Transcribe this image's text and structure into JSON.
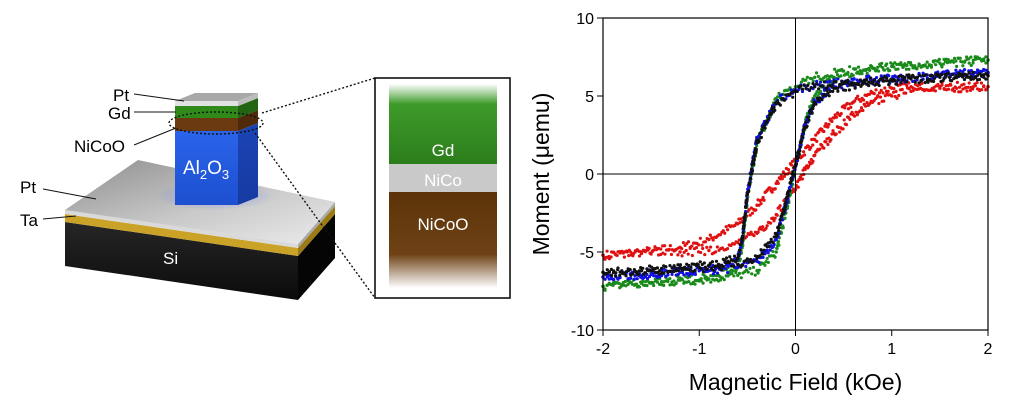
{
  "device": {
    "labels": {
      "pt_top": "Pt",
      "gd": "Gd",
      "nicoo": "NiCoO",
      "al2o3_main": "Al",
      "al2o3_sub": "2",
      "al2o3_o": "O",
      "al2o3_sub2": "3",
      "pt_base": "Pt",
      "ta": "Ta",
      "si": "Si"
    },
    "colors": {
      "pt": "#c8c8c8",
      "gd": "#2f8a1a",
      "nicoo": "#6b3a10",
      "al2o3": "#2a5fe0",
      "ta": "#c9a227",
      "si": "#151515"
    }
  },
  "inset": {
    "labels": {
      "gd": "Gd",
      "nico": "NiCo",
      "nicoo": "NiCoO"
    }
  },
  "chart_data": {
    "type": "scatter",
    "xlabel": "Magnetic Field (kOe)",
    "ylabel": "Moment (μemu)",
    "xlim": [
      -2,
      2
    ],
    "ylim": [
      -10,
      10
    ],
    "xticks": [
      "-2",
      "-1",
      "0",
      "1",
      "2"
    ],
    "yticks": [
      "10",
      "5",
      "0",
      "-5",
      "-10"
    ],
    "grid": false,
    "zero_lines": true,
    "series": [
      {
        "color": "#e01010",
        "branches": [
          {
            "x": [
              -2.0,
              -1.6,
              -1.2,
              -0.9,
              -0.6,
              -0.4,
              -0.2,
              0.0,
              0.2,
              0.4,
              0.6,
              0.8,
              1.0,
              1.2,
              1.5,
              2.0
            ],
            "y": [
              -5.2,
              -5.0,
              -4.7,
              -4.2,
              -3.2,
              -2.0,
              -0.6,
              0.8,
              2.2,
              3.6,
              4.6,
              5.2,
              5.5,
              5.6,
              5.6,
              5.6
            ]
          },
          {
            "x": [
              2.0,
              1.5,
              1.2,
              1.0,
              0.8,
              0.6,
              0.4,
              0.2,
              0.1,
              0.0,
              -0.2,
              -0.4,
              -0.6,
              -0.9,
              -1.2,
              -1.6,
              -2.0
            ],
            "y": [
              5.6,
              5.5,
              5.3,
              5.0,
              4.6,
              3.8,
              2.6,
              1.2,
              0.3,
              -1.0,
              -2.6,
              -3.8,
              -4.4,
              -4.9,
              -5.0,
              -5.1,
              -5.2
            ]
          }
        ]
      },
      {
        "color": "#1a8a1a",
        "branches": [
          {
            "x": [
              -2.0,
              -1.5,
              -1.0,
              -0.6,
              -0.4,
              -0.2,
              -0.1,
              0.0,
              0.1,
              0.2,
              0.4,
              0.8,
              1.2,
              1.6,
              2.0
            ],
            "y": [
              -7.2,
              -7.0,
              -6.8,
              -6.5,
              -6.2,
              -5.0,
              -2.5,
              0.5,
              3.2,
              5.0,
              6.2,
              6.8,
              7.0,
              7.2,
              7.3
            ]
          },
          {
            "x": [
              2.0,
              1.5,
              1.0,
              0.5,
              0.2,
              0.0,
              -0.2,
              -0.4,
              -0.5,
              -0.55,
              -0.6,
              -0.8,
              -1.2,
              -1.6,
              -2.0
            ],
            "y": [
              7.3,
              7.1,
              6.9,
              6.6,
              6.2,
              5.6,
              4.8,
              2.0,
              -1.5,
              -4.5,
              -6.0,
              -6.5,
              -6.8,
              -7.0,
              -7.2
            ]
          }
        ]
      },
      {
        "color": "#1010e0",
        "branches": [
          {
            "x": [
              -2.0,
              -1.5,
              -1.0,
              -0.6,
              -0.4,
              -0.2,
              -0.1,
              0.0,
              0.1,
              0.2,
              0.4,
              0.8,
              1.2,
              1.6,
              2.0
            ],
            "y": [
              -6.6,
              -6.4,
              -6.2,
              -6.0,
              -5.6,
              -4.2,
              -2.0,
              0.5,
              3.2,
              4.6,
              5.6,
              6.0,
              6.2,
              6.4,
              6.5
            ]
          },
          {
            "x": [
              2.0,
              1.5,
              1.0,
              0.5,
              0.2,
              0.0,
              -0.2,
              -0.4,
              -0.5,
              -0.55,
              -0.6,
              -0.8,
              -1.2,
              -1.6,
              -2.0
            ],
            "y": [
              6.5,
              6.3,
              6.1,
              5.9,
              5.7,
              5.4,
              4.6,
              2.2,
              -1.2,
              -4.0,
              -5.5,
              -6.0,
              -6.3,
              -6.5,
              -6.6
            ]
          }
        ]
      },
      {
        "color": "#111111",
        "branches": [
          {
            "x": [
              -2.0,
              -1.5,
              -1.0,
              -0.6,
              -0.4,
              -0.2,
              -0.1,
              0.0,
              0.1,
              0.2,
              0.4,
              0.8,
              1.2,
              1.6,
              2.0
            ],
            "y": [
              -6.3,
              -6.2,
              -6.0,
              -5.8,
              -5.4,
              -4.0,
              -1.8,
              0.6,
              3.0,
              4.5,
              5.5,
              5.9,
              6.1,
              6.2,
              6.3
            ]
          },
          {
            "x": [
              2.0,
              1.5,
              1.0,
              0.5,
              0.2,
              0.0,
              -0.2,
              -0.4,
              -0.5,
              -0.55,
              -0.6,
              -0.8,
              -1.2,
              -1.6,
              -2.0
            ],
            "y": [
              6.3,
              6.2,
              6.0,
              5.8,
              5.6,
              5.3,
              4.5,
              2.0,
              -1.3,
              -4.0,
              -5.4,
              -5.8,
              -6.0,
              -6.2,
              -6.3
            ]
          }
        ]
      }
    ]
  }
}
